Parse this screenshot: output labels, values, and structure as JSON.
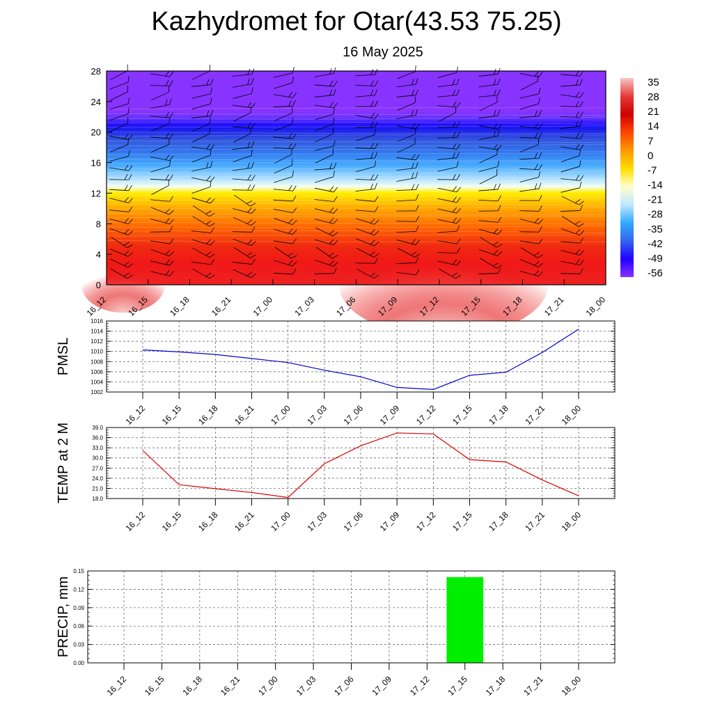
{
  "title": "Kazhydromet for Otar(43.53 75.25)",
  "subtitle": "16 May 2025",
  "time_labels": [
    "16_12",
    "16_15",
    "16_18",
    "16_21",
    "17_00",
    "17_03",
    "17_06",
    "17_09",
    "17_12",
    "17_15",
    "17_18",
    "17_21",
    "18_00"
  ],
  "chart_data": [
    {
      "type": "heatmap",
      "title": "",
      "ylabel": "",
      "ylim": [
        0,
        28
      ],
      "yticks": [
        "0",
        "4",
        "8",
        "12",
        "16",
        "20",
        "24",
        "28"
      ],
      "x": [
        "16_12",
        "16_15",
        "16_18",
        "16_21",
        "17_00",
        "17_03",
        "17_06",
        "17_09",
        "17_12",
        "17_15",
        "17_18",
        "17_21",
        "18_00"
      ],
      "colorbar": {
        "labels": [
          "35",
          "28",
          "21",
          "14",
          "7",
          "0",
          "-7",
          "-14",
          "-21",
          "-28",
          "-35",
          "-42",
          "-49",
          "-56"
        ],
        "range": [
          -60,
          38
        ],
        "colors": [
          "#f6c8c8",
          "#e83a3a",
          "#cc0000",
          "#ff4400",
          "#ff9900",
          "#ffdd00",
          "#ffffcc",
          "#bfe8ff",
          "#33aaff",
          "#3366ee",
          "#2200ff",
          "#8833ff"
        ]
      },
      "surface_temperature": [
        33,
        26,
        23,
        22,
        20,
        26,
        30,
        36,
        37,
        31,
        29,
        27,
        24
      ],
      "tropopause_level": 20.5,
      "freezing_level": 13
    },
    {
      "type": "line",
      "ylabel": "PMSL",
      "ylim": [
        1002,
        1016
      ],
      "yticks": [
        "1002",
        "1004",
        "1006",
        "1008",
        "1010",
        "1012",
        "1014",
        "1016"
      ],
      "color": "#0000cc",
      "x": [
        "16_12",
        "16_15",
        "16_18",
        "16_21",
        "17_00",
        "17_03",
        "17_06",
        "17_09",
        "17_12",
        "17_15",
        "17_18",
        "17_21",
        "18_00"
      ],
      "values": [
        1010.3,
        1009.9,
        1009.4,
        1008.6,
        1007.8,
        1006.3,
        1005.0,
        1002.9,
        1002.5,
        1005.3,
        1005.9,
        1009.8,
        1014.4
      ]
    },
    {
      "type": "line",
      "ylabel": "TEMP at 2 M",
      "ylim": [
        18,
        39
      ],
      "yticks": [
        "18.0",
        "21.0",
        "24.0",
        "27.0",
        "30.0",
        "33.0",
        "36.0",
        "39.0"
      ],
      "color": "#dd0000",
      "x": [
        "16_12",
        "16_15",
        "16_18",
        "16_21",
        "17_00",
        "17_03",
        "17_06",
        "17_09",
        "17_12",
        "17_15",
        "17_18",
        "17_21",
        "18_00"
      ],
      "values": [
        32.2,
        22.1,
        20.9,
        19.8,
        18.3,
        28.3,
        33.6,
        37.4,
        37.1,
        29.5,
        28.8,
        23.5,
        18.8
      ]
    },
    {
      "type": "bar",
      "ylabel": "PRECIP, mm",
      "ylim": [
        0,
        0.15
      ],
      "yticks": [
        "0.00",
        "0.03",
        "0.06",
        "0.09",
        "0.12",
        "0.15"
      ],
      "color": "#00ee00",
      "x": [
        "16_12",
        "16_15",
        "16_18",
        "16_21",
        "17_00",
        "17_03",
        "17_06",
        "17_09",
        "17_12",
        "17_15",
        "17_18",
        "17_21",
        "18_00"
      ],
      "values": [
        0,
        0,
        0,
        0,
        0,
        0,
        0,
        0,
        0,
        0.14,
        0,
        0,
        0
      ]
    }
  ]
}
